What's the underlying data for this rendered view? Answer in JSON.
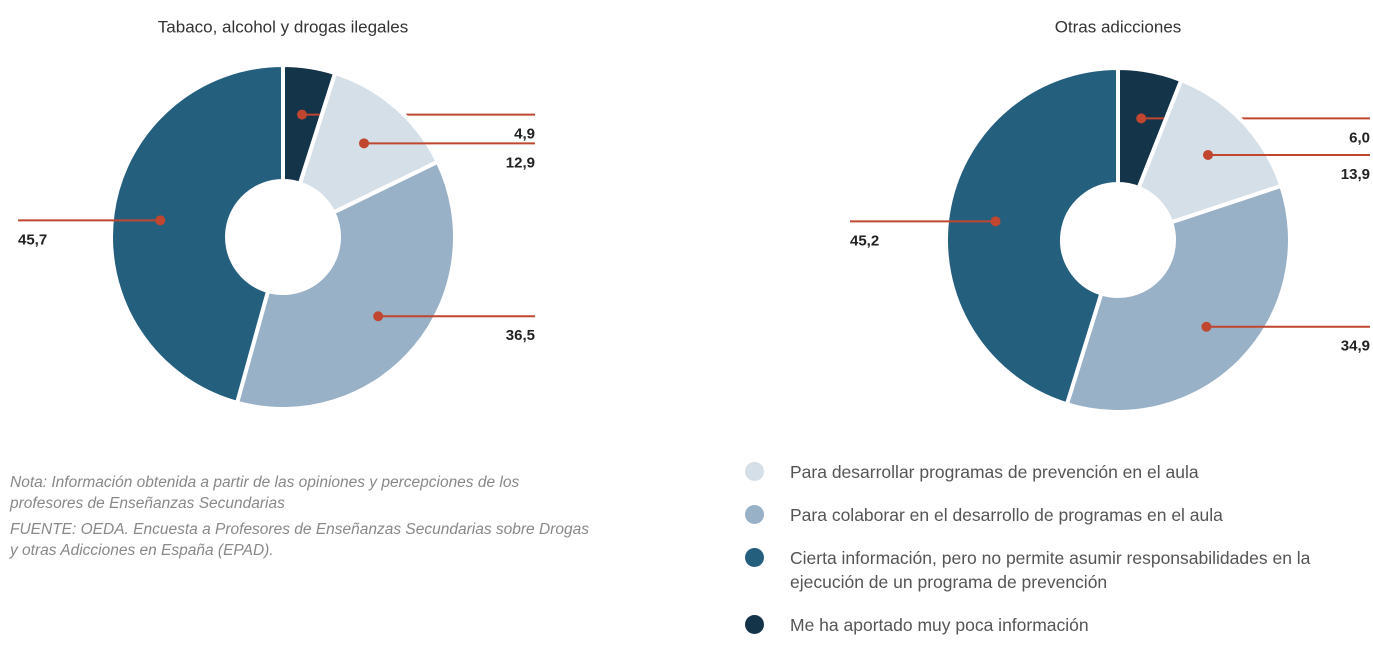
{
  "chart_data": [
    {
      "type": "pie",
      "title": "Tabaco, alcohol y drogas ilegales",
      "values": [
        12.9,
        36.5,
        45.7,
        4.9
      ],
      "value_labels": [
        "12,9",
        "36,5",
        "45,7",
        "4,9"
      ]
    },
    {
      "type": "pie",
      "title": "Otras adicciones",
      "values": [
        13.9,
        34.9,
        45.2,
        6.0
      ],
      "value_labels": [
        "13,9",
        "34,9",
        "45,2",
        "6,0"
      ]
    }
  ],
  "legend": {
    "items": [
      "Para desarrollar programas de prevención en el aula",
      "Para colaborar en el desarrollo de programas en el aula",
      "Cierta información, pero no permite asumir responsabilidades en la ejecución de un programa de prevención",
      "Me ha aportado muy poca información"
    ],
    "colors": [
      "#d5dfe8",
      "#98b1c6",
      "#245f7e",
      "#14344a"
    ]
  },
  "note": "Nota: Información obtenida a partir de las opiniones y percepciones de los profesores de Enseñanzas Secundarias",
  "source": "FUENTE: OEDA. Encuesta a Profesores de Enseñanzas Secundarias sobre Drogas y otras Adicciones en España (EPAD)."
}
